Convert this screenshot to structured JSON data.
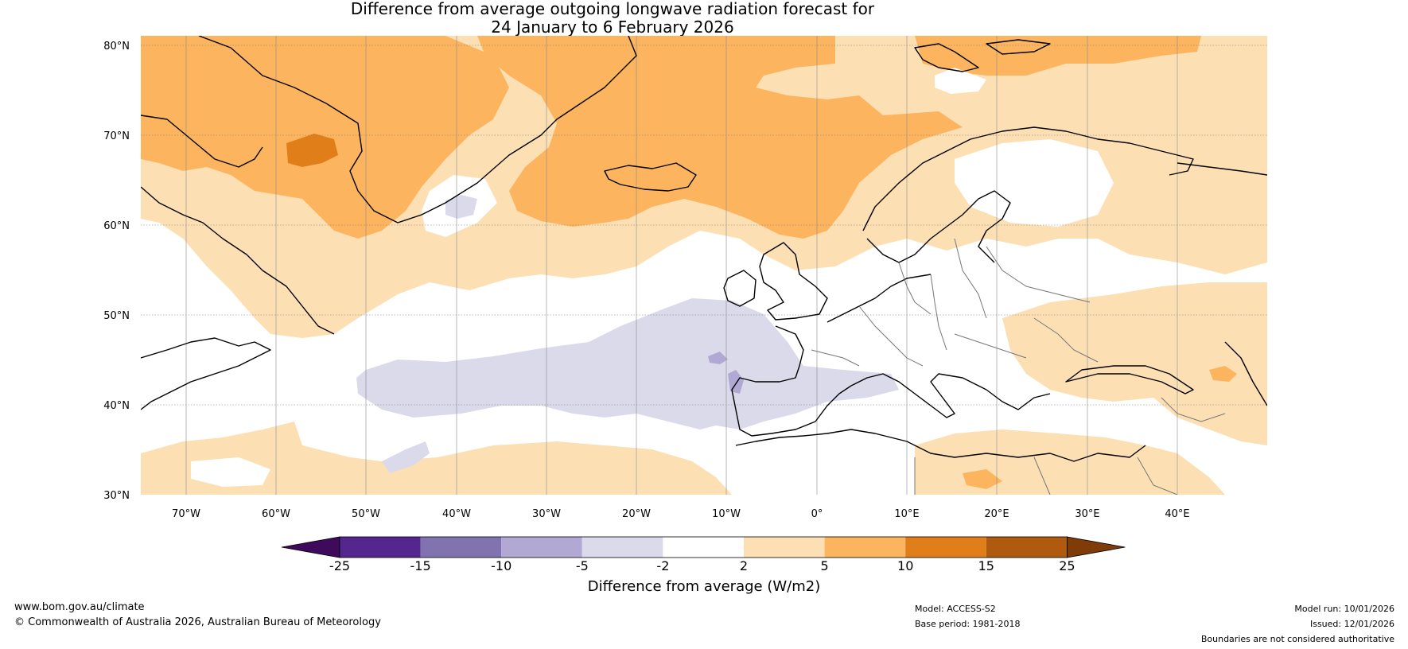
{
  "title": {
    "line1": "Difference from average outgoing longwave radiation forecast for",
    "line2": "24 January to 6 February 2026"
  },
  "map": {
    "lat_ticks": [
      "30°N",
      "40°N",
      "50°N",
      "60°N",
      "70°N",
      "80°N"
    ],
    "lon_ticks": [
      "70°W",
      "60°W",
      "50°W",
      "40°W",
      "30°W",
      "20°W",
      "10°W",
      "0°",
      "10°E",
      "20°E",
      "30°E",
      "40°E"
    ],
    "lat_values": [
      30,
      40,
      50,
      60,
      70,
      80
    ],
    "lon_values": [
      -70,
      -60,
      -50,
      -40,
      -30,
      -20,
      -10,
      0,
      10,
      20,
      30,
      40
    ],
    "extent": {
      "lon_min": -75,
      "lon_max": 50,
      "lat_min": 30,
      "lat_max": 81
    }
  },
  "colorbar": {
    "title": "Difference from average (W/m2)",
    "ticks": [
      "-25",
      "-15",
      "-10",
      "-5",
      "-2",
      "2",
      "5",
      "10",
      "15",
      "25"
    ],
    "colors": [
      "#3f0a5c",
      "#54278f",
      "#8073b0",
      "#b1a9d3",
      "#dadaeb",
      "#ffffff",
      "#fddfb4",
      "#fcb45f",
      "#e07f19",
      "#b05a10",
      "#7f3b08"
    ]
  },
  "footer": {
    "website": "www.bom.gov.au/climate",
    "copyright": "© Commonwealth of Australia 2026, Australian Bureau of Meteorology",
    "model": "Model: ACCESS-S2",
    "base_period": "Base period: 1981-2018",
    "model_run": "Model run: 10/01/2026",
    "issued": "Issued: 12/01/2026",
    "disclaimer": "Boundaries are not considered authoritative"
  },
  "colors": {
    "light_orange": "#fddfb4",
    "orange": "#fcb45f",
    "dark_orange": "#e07f19",
    "light_purple": "#dadaeb",
    "mid_purple": "#b1a9d3"
  }
}
